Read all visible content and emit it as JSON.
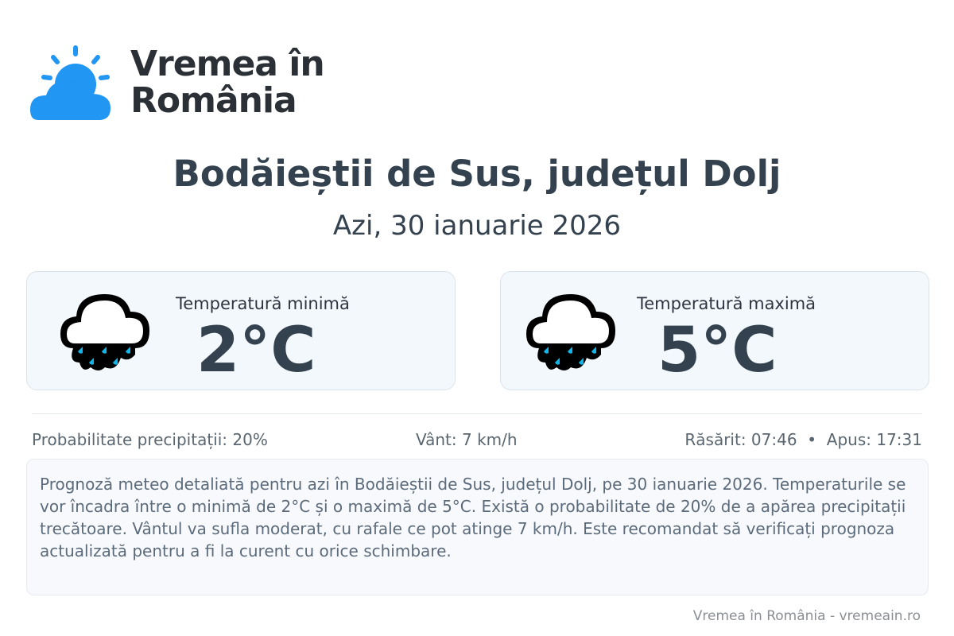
{
  "brand": {
    "name": "Vremea în România",
    "line1": "Vremea în",
    "line2": "România",
    "color": "#2196f3"
  },
  "header": {
    "title": "Bodăieștii de Sus, județul Dolj",
    "date": "Azi, 30 ianuarie 2026"
  },
  "cards": [
    {
      "label": "Temperatură minimă",
      "value": "2°C",
      "icon": "rain-cloud-icon"
    },
    {
      "label": "Temperatură maximă",
      "value": "5°C",
      "icon": "rain-cloud-icon"
    }
  ],
  "stats": {
    "precip": "Probabilitate precipitații: 20%",
    "wind": "Vânt: 7 km/h",
    "sun": "Răsărit: 07:46  •  Apus: 17:31"
  },
  "description": "Prognoză meteo detaliată pentru azi în Bodăieștii de Sus, județul Dolj, pe 30 ianuarie 2026. Temperaturile se vor încadra între o minimă de 2°C și o maximă de 5°C. Există o probabilitate de 20% de a apărea precipitații trecătoare. Vântul va sufla moderat, cu rafale ce pot atinge 7 km/h. Este recomandat să verificați prognoza actualizată pentru a fi la curent cu orice schimbare.",
  "footer": "Vremea în România - vremeain.ro"
}
